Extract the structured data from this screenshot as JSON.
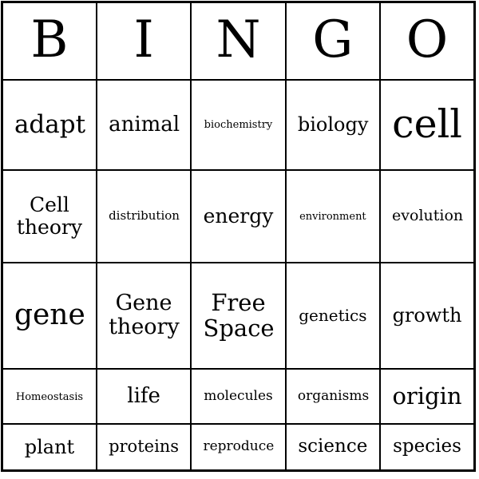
{
  "card": {
    "header_letters": [
      "B",
      "I",
      "N",
      "G",
      "O"
    ],
    "rows": [
      [
        "adapt",
        "animal",
        "biochemistry",
        "biology",
        "cell"
      ],
      [
        "Cell theory",
        "distribution",
        "energy",
        "environment",
        "evolution"
      ],
      [
        "gene",
        "Gene theory",
        "Free Space",
        "genetics",
        "growth"
      ],
      [
        "Homeostasis",
        "life",
        "molecules",
        "organisms",
        "origin"
      ],
      [
        "plant",
        "proteins",
        "reproduce",
        "science",
        "species"
      ]
    ],
    "colors": {
      "background": "#ffffff",
      "grid_lines": "#000000",
      "text": "#000000"
    }
  }
}
